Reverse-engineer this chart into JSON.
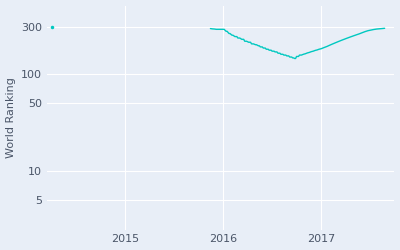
{
  "ylabel": "World Ranking",
  "bg_color": "#e8eef7",
  "fig_bg_color": "#e8eef7",
  "line_color": "#00c8c0",
  "dot_color": "#00c8c0",
  "yticks": [
    5,
    10,
    50,
    100,
    300
  ],
  "ytick_labels": [
    "5",
    "10",
    "50",
    "100",
    "300"
  ],
  "xtick_positions": [
    2015.0,
    2016.0,
    2017.0
  ],
  "xtick_labels": [
    "2015",
    "2016",
    "2017"
  ],
  "xlim": [
    2014.2,
    2017.75
  ],
  "ylim": [
    2.5,
    500
  ],
  "isolated_dot_x": 2014.25,
  "isolated_dot_y": 300,
  "line_data": [
    [
      2015.87,
      290
    ],
    [
      2015.89,
      288
    ],
    [
      2015.91,
      287
    ],
    [
      2015.93,
      285
    ],
    [
      2015.96,
      285
    ],
    [
      2015.98,
      285
    ],
    [
      2016.0,
      285
    ],
    [
      2016.01,
      285
    ],
    [
      2016.03,
      272
    ],
    [
      2016.04,
      272
    ],
    [
      2016.06,
      258
    ],
    [
      2016.07,
      258
    ],
    [
      2016.09,
      248
    ],
    [
      2016.1,
      248
    ],
    [
      2016.12,
      240
    ],
    [
      2016.14,
      240
    ],
    [
      2016.15,
      232
    ],
    [
      2016.17,
      232
    ],
    [
      2016.19,
      225
    ],
    [
      2016.21,
      225
    ],
    [
      2016.22,
      215
    ],
    [
      2016.24,
      215
    ],
    [
      2016.26,
      210
    ],
    [
      2016.28,
      210
    ],
    [
      2016.29,
      202
    ],
    [
      2016.31,
      202
    ],
    [
      2016.33,
      198
    ],
    [
      2016.34,
      198
    ],
    [
      2016.36,
      193
    ],
    [
      2016.37,
      193
    ],
    [
      2016.38,
      188
    ],
    [
      2016.4,
      188
    ],
    [
      2016.41,
      183
    ],
    [
      2016.43,
      183
    ],
    [
      2016.44,
      178
    ],
    [
      2016.46,
      178
    ],
    [
      2016.47,
      174
    ],
    [
      2016.49,
      174
    ],
    [
      2016.5,
      170
    ],
    [
      2016.52,
      170
    ],
    [
      2016.53,
      167
    ],
    [
      2016.55,
      167
    ],
    [
      2016.56,
      162
    ],
    [
      2016.58,
      162
    ],
    [
      2016.59,
      158
    ],
    [
      2016.61,
      158
    ],
    [
      2016.62,
      155
    ],
    [
      2016.64,
      155
    ],
    [
      2016.65,
      152
    ],
    [
      2016.67,
      152
    ],
    [
      2016.68,
      148
    ],
    [
      2016.7,
      148
    ],
    [
      2016.71,
      145
    ],
    [
      2016.72,
      145
    ],
    [
      2016.73,
      143
    ],
    [
      2016.74,
      143
    ],
    [
      2016.75,
      150
    ],
    [
      2016.77,
      150
    ],
    [
      2016.78,
      155
    ],
    [
      2016.8,
      155
    ],
    [
      2016.82,
      158
    ],
    [
      2016.84,
      160
    ],
    [
      2016.86,
      163
    ],
    [
      2016.88,
      165
    ],
    [
      2016.9,
      168
    ],
    [
      2016.92,
      170
    ],
    [
      2016.94,
      173
    ],
    [
      2016.96,
      175
    ],
    [
      2016.98,
      178
    ],
    [
      2017.0,
      180
    ],
    [
      2017.03,
      185
    ],
    [
      2017.06,
      190
    ],
    [
      2017.09,
      196
    ],
    [
      2017.12,
      202
    ],
    [
      2017.15,
      208
    ],
    [
      2017.18,
      214
    ],
    [
      2017.21,
      220
    ],
    [
      2017.24,
      226
    ],
    [
      2017.27,
      232
    ],
    [
      2017.3,
      238
    ],
    [
      2017.33,
      244
    ],
    [
      2017.36,
      250
    ],
    [
      2017.39,
      256
    ],
    [
      2017.42,
      263
    ],
    [
      2017.45,
      270
    ],
    [
      2017.48,
      276
    ],
    [
      2017.51,
      280
    ],
    [
      2017.54,
      284
    ],
    [
      2017.57,
      287
    ],
    [
      2017.62,
      290
    ],
    [
      2017.65,
      292
    ]
  ]
}
